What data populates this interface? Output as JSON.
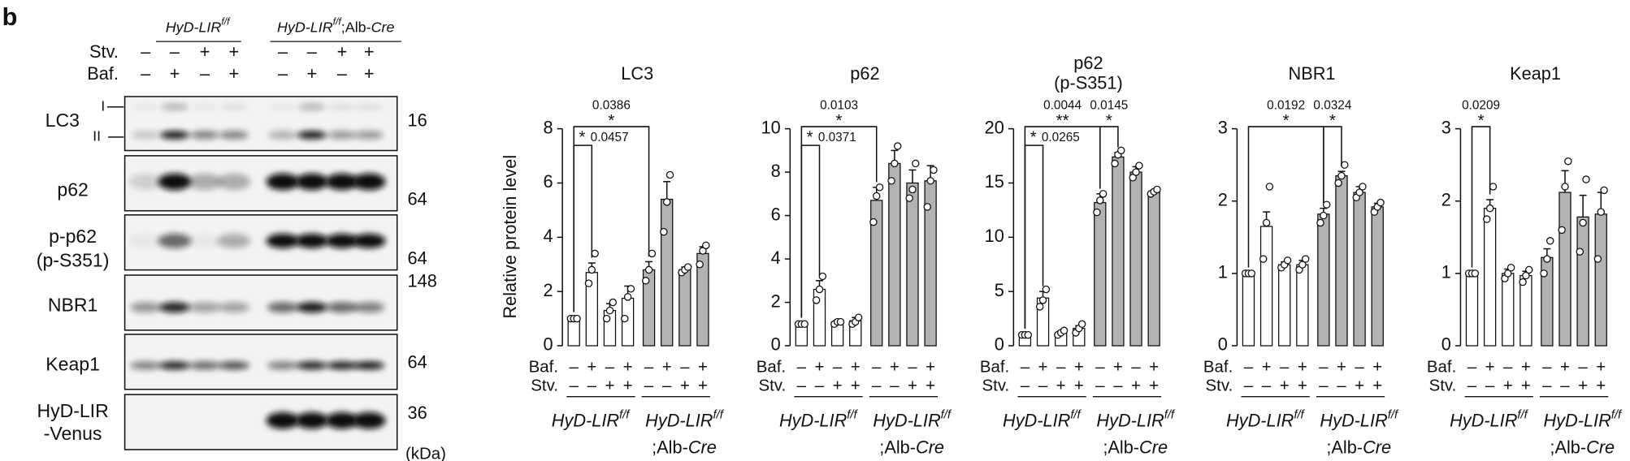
{
  "panel_label": "b",
  "groups": [
    [
      "HyD-LIR",
      "f/f"
    ],
    [
      "HyD-LIR",
      "f/f",
      ";Alb-",
      "Cre"
    ]
  ],
  "blot": {
    "conditions": [
      {
        "label": "Stv.",
        "values": [
          "–",
          "–",
          "+",
          "+",
          "–",
          "–",
          "+",
          "+"
        ]
      },
      {
        "label": "Baf.",
        "values": [
          "–",
          "+",
          "–",
          "+",
          "–",
          "+",
          "–",
          "+"
        ]
      }
    ],
    "rows": [
      {
        "label": [
          "LC3"
        ],
        "markers": [
          "I",
          "II"
        ],
        "kda": 16
      },
      {
        "label": [
          "p62"
        ],
        "kda": 64
      },
      {
        "label": [
          "p-p62",
          "(p-S351)"
        ],
        "kda": 64
      },
      {
        "label": [
          "NBR1"
        ],
        "kda": 148
      },
      {
        "label": [
          "Keap1"
        ],
        "kda": 64
      },
      {
        "label": [
          "HyD-LIR",
          "-Venus"
        ],
        "kda": 36
      }
    ],
    "unit": "(kDa)"
  },
  "chart_conditions": [
    {
      "label": "Baf.",
      "values": [
        "–",
        "+",
        "–",
        "+",
        "–",
        "+",
        "–",
        "+"
      ]
    },
    {
      "label": "Stv.",
      "values": [
        "–",
        "–",
        "+",
        "+",
        "–",
        "–",
        "+",
        "+"
      ]
    }
  ],
  "y_label": "Relative protein level",
  "chart_data": [
    {
      "type": "bar",
      "title": [
        "LC3"
      ],
      "ylim": [
        0,
        8
      ],
      "yticks": [
        0,
        2,
        4,
        6,
        8
      ],
      "colors": [
        "#ffffff",
        "#ffffff",
        "#ffffff",
        "#ffffff",
        "#b3b3b3",
        "#b3b3b3",
        "#b3b3b3",
        "#b3b3b3"
      ],
      "values": [
        1.0,
        2.7,
        1.3,
        1.75,
        2.8,
        5.4,
        2.8,
        3.4
      ],
      "errors": [
        0.05,
        0.35,
        0.25,
        0.45,
        0.3,
        0.65,
        0.1,
        0.25
      ],
      "points": [
        [
          1,
          1,
          1
        ],
        [
          2.3,
          2.8,
          3.4
        ],
        [
          1.0,
          1.3,
          1.6
        ],
        [
          1.0,
          1.8,
          2.1
        ],
        [
          2.4,
          2.8,
          3.4
        ],
        [
          4.2,
          5.3,
          6.3
        ],
        [
          2.7,
          2.8,
          2.9
        ],
        [
          3.0,
          3.5,
          3.7
        ]
      ],
      "significance": [
        {
          "from": 0,
          "to": 1,
          "stars": "*",
          "p": 0.0457
        },
        {
          "from": 0,
          "to": 4,
          "stars": "*",
          "p": 0.0386
        }
      ]
    },
    {
      "type": "bar",
      "title": [
        "p62"
      ],
      "ylim": [
        0,
        10
      ],
      "yticks": [
        0,
        2,
        4,
        6,
        8,
        10
      ],
      "colors": [
        "#ffffff",
        "#ffffff",
        "#ffffff",
        "#ffffff",
        "#b3b3b3",
        "#b3b3b3",
        "#b3b3b3",
        "#b3b3b3"
      ],
      "values": [
        1.0,
        2.6,
        1.1,
        1.15,
        6.7,
        8.4,
        7.5,
        7.6
      ],
      "errors": [
        0.05,
        0.4,
        0.08,
        0.15,
        0.6,
        0.6,
        0.6,
        0.7
      ],
      "points": [
        [
          1,
          1,
          1
        ],
        [
          2.1,
          2.6,
          3.2
        ],
        [
          1.0,
          1.1,
          1.1
        ],
        [
          1.0,
          1.1,
          1.3
        ],
        [
          5.7,
          6.9,
          7.3
        ],
        [
          7.6,
          8.4,
          9.2
        ],
        [
          6.8,
          7.2,
          8.4
        ],
        [
          6.4,
          7.6,
          8.1
        ]
      ],
      "significance": [
        {
          "from": 0,
          "to": 1,
          "stars": "*",
          "p": 0.0371
        },
        {
          "from": 0,
          "to": 4,
          "stars": "*",
          "p": 0.0103
        }
      ]
    },
    {
      "type": "bar",
      "title": [
        "p62",
        "(p-S351)"
      ],
      "ylim": [
        0,
        20
      ],
      "yticks": [
        0,
        5,
        10,
        15,
        20
      ],
      "colors": [
        "#ffffff",
        "#ffffff",
        "#ffffff",
        "#ffffff",
        "#b3b3b3",
        "#b3b3b3",
        "#b3b3b3",
        "#b3b3b3"
      ],
      "values": [
        1.0,
        4.4,
        1.2,
        1.6,
        13.2,
        17.4,
        16.0,
        14.2
      ],
      "errors": [
        0.1,
        0.6,
        0.15,
        0.25,
        0.8,
        0.4,
        0.5,
        0.15
      ],
      "points": [
        [
          1,
          1,
          1
        ],
        [
          3.6,
          4.2,
          5.2
        ],
        [
          1.0,
          1.2,
          1.4
        ],
        [
          1.2,
          1.6,
          2.0
        ],
        [
          12.3,
          13.4,
          14.0
        ],
        [
          16.8,
          17.6,
          18.0
        ],
        [
          15.5,
          16.0,
          16.6
        ],
        [
          14.0,
          14.2,
          14.4
        ]
      ],
      "significance": [
        {
          "from": 0,
          "to": 1,
          "stars": "*",
          "p": 0.0265
        },
        {
          "from": 0,
          "to": 4,
          "stars": "**",
          "p": 0.0044
        },
        {
          "from": 4,
          "to": 5,
          "stars": "*",
          "p": 0.0145
        }
      ]
    },
    {
      "type": "bar",
      "title": [
        "NBR1"
      ],
      "ylim": [
        0,
        3
      ],
      "yticks": [
        0,
        1,
        2,
        3
      ],
      "colors": [
        "#ffffff",
        "#ffffff",
        "#ffffff",
        "#ffffff",
        "#b3b3b3",
        "#b3b3b3",
        "#b3b3b3",
        "#b3b3b3"
      ],
      "values": [
        1.0,
        1.65,
        1.12,
        1.12,
        1.82,
        2.35,
        2.12,
        1.92
      ],
      "errors": [
        0.01,
        0.2,
        0.04,
        0.06,
        0.08,
        0.06,
        0.08,
        0.05
      ],
      "points": [
        [
          1,
          1,
          1
        ],
        [
          1.2,
          1.7,
          2.2
        ],
        [
          1.08,
          1.12,
          1.18
        ],
        [
          1.05,
          1.12,
          1.2
        ],
        [
          1.7,
          1.8,
          1.95
        ],
        [
          2.25,
          2.35,
          2.5
        ],
        [
          2.05,
          2.12,
          2.2
        ],
        [
          1.85,
          1.92,
          1.98
        ]
      ],
      "significance": [
        {
          "from": 0,
          "to": 4,
          "stars": "*",
          "p": 0.0192
        },
        {
          "from": 4,
          "to": 5,
          "stars": "*",
          "p": 0.0324
        }
      ]
    },
    {
      "type": "bar",
      "title": [
        "Keap1"
      ],
      "ylim": [
        0,
        3
      ],
      "yticks": [
        0,
        1,
        2,
        3
      ],
      "colors": [
        "#ffffff",
        "#ffffff",
        "#ffffff",
        "#ffffff",
        "#b3b3b3",
        "#b3b3b3",
        "#b3b3b3",
        "#b3b3b3"
      ],
      "values": [
        1.0,
        1.9,
        1.0,
        0.97,
        1.22,
        2.12,
        1.78,
        1.82
      ],
      "errors": [
        0.01,
        0.12,
        0.06,
        0.06,
        0.12,
        0.3,
        0.3,
        0.3
      ],
      "points": [
        [
          1,
          1,
          1
        ],
        [
          1.75,
          1.9,
          2.2
        ],
        [
          0.93,
          1.0,
          1.08
        ],
        [
          0.88,
          0.97,
          1.05
        ],
        [
          1.0,
          1.2,
          1.45
        ],
        [
          1.6,
          2.2,
          2.55
        ],
        [
          1.3,
          1.7,
          2.3
        ],
        [
          1.2,
          1.85,
          2.15
        ]
      ],
      "significance": [
        {
          "from": 0,
          "to": 1,
          "stars": "*",
          "p": 0.0209
        }
      ]
    }
  ]
}
